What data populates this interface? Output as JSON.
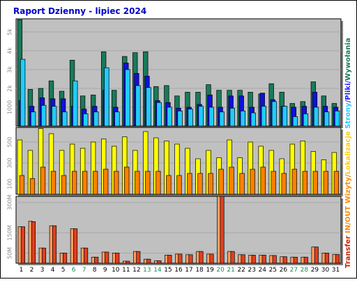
{
  "chart_data": {
    "type": "bar",
    "title": "Raport Dzienny -  lipiec 2024",
    "categories": [
      "1",
      "2",
      "3",
      "4",
      "5",
      "6",
      "7",
      "8",
      "9",
      "10",
      "11",
      "12",
      "13",
      "14",
      "15",
      "16",
      "17",
      "18",
      "19",
      "20",
      "21",
      "22",
      "23",
      "24",
      "25",
      "26",
      "27",
      "28",
      "29",
      "30",
      "31"
    ],
    "weekend_days": [
      "6",
      "7",
      "13",
      "14",
      "20",
      "21",
      "27",
      "28"
    ],
    "panels": [
      {
        "id": "top",
        "ylim": [
          0,
          5700
        ],
        "yticks": [
          1000,
          2000,
          3000,
          4000,
          5000
        ],
        "ytick_labels": [
          "1000",
          "2k",
          "3k",
          "4k",
          "5k"
        ],
        "series": [
          {
            "name": "Wywołania",
            "color": "#1a7a5a",
            "values": [
              5650,
              1950,
              2000,
              2400,
              1850,
              3500,
              1600,
              1650,
              3950,
              1900,
              3700,
              3900,
              3950,
              2100,
              2150,
              1600,
              1800,
              1800,
              2200,
              1900,
              1900,
              1900,
              1800,
              1700,
              2250,
              1800,
              1200,
              1300,
              2350,
              1600,
              1200
            ]
          },
          {
            "name": "Strony",
            "color": "#1010d8",
            "values": [
              1350,
              1050,
              1500,
              1450,
              1450,
              1050,
              900,
              1050,
              1900,
              1000,
              3350,
              2800,
              2650,
              1350,
              1250,
              950,
              1000,
              1150,
              1650,
              1000,
              1600,
              1600,
              1000,
              1750,
              1400,
              1050,
              1000,
              1050,
              1800,
              1050,
              1000
            ]
          },
          {
            "name": "Pliki",
            "color": "#20ccff",
            "values": [
              3550,
              750,
              1100,
              1050,
              750,
              2400,
              650,
              750,
              3100,
              750,
              3000,
              2150,
              2050,
              1250,
              1000,
              800,
              900,
              1050,
              1000,
              750,
              950,
              800,
              700,
              1050,
              1300,
              1050,
              500,
              650,
              1000,
              750,
              800
            ]
          }
        ]
      },
      {
        "id": "middle",
        "ylim": [
          0,
          640
        ],
        "yticks": [
          100,
          300,
          500
        ],
        "ytick_labels": [
          "100",
          "300",
          "500"
        ],
        "series": [
          {
            "name": "Lokalizacje",
            "color": "#ffff00",
            "values": [
              520,
              420,
              630,
              580,
              420,
              480,
              440,
              500,
              530,
              460,
              550,
              420,
              600,
              540,
              510,
              480,
              440,
              340,
              420,
              350,
              520,
              350,
              500,
              460,
              420,
              340,
              480,
              510,
              410,
              330,
              400
            ]
          },
          {
            "name": "Wizyty",
            "color": "#ff8000",
            "values": [
              180,
              150,
              260,
              220,
              180,
              220,
              220,
              220,
              240,
              220,
              260,
              220,
              220,
              220,
              180,
              180,
              200,
              200,
              200,
              240,
              260,
              200,
              240,
              260,
              220,
              200,
              240,
              220,
              220,
              220,
              220
            ]
          }
        ]
      },
      {
        "id": "bottom",
        "ylim": [
          0,
          330
        ],
        "yticks": [
          50,
          150,
          300
        ],
        "ytick_labels": [
          "50M",
          "150M",
          "300M"
        ],
        "series": [
          {
            "name": "OUT",
            "color": "#ffa060",
            "values": [
              180,
              207,
              75,
              185,
              50,
              170,
              75,
              30,
              55,
              50,
              10,
              58,
              20,
              12,
              40,
              45,
              42,
              58,
              45,
              330,
              58,
              42,
              40,
              40,
              38,
              32,
              30,
              30,
              80,
              50,
              43
            ]
          },
          {
            "name": "IN",
            "color": "#e04020",
            "values": [
              180,
              205,
              75,
              185,
              50,
              170,
              75,
              30,
              55,
              50,
              10,
              58,
              20,
              12,
              40,
              45,
              42,
              58,
              45,
              330,
              58,
              42,
              40,
              40,
              38,
              32,
              30,
              30,
              80,
              50,
              43
            ]
          }
        ]
      }
    ],
    "right_legend": [
      {
        "text": "Transfer",
        "color": "#cc2200"
      },
      {
        "text": "IN",
        "color": "#ff8800"
      },
      {
        "text": "/",
        "color": "#cc8800"
      },
      {
        "text": "OUT",
        "color": "#ff8800"
      },
      {
        "text": "Wizyty",
        "color": "#ff8800"
      },
      {
        "text": "/",
        "color": "#cc8800"
      },
      {
        "text": "Lokalizacje",
        "color": "#ffcc00"
      },
      {
        "text": "Strony",
        "color": "#20ccff"
      },
      {
        "text": "/",
        "color": "#2020ff"
      },
      {
        "text": "Pliki",
        "color": "#2020ff"
      },
      {
        "text": "/",
        "color": "#2020ff"
      },
      {
        "text": "Wywołania",
        "color": "#1a7a5a"
      }
    ],
    "colors": {
      "plot_bg": "#c0c0c0",
      "frame_bg": "#ffffff",
      "title": "#0000cc",
      "tick_label": "#888888",
      "day_label": "#000000",
      "weekend_label": "#1a8a5a"
    }
  }
}
